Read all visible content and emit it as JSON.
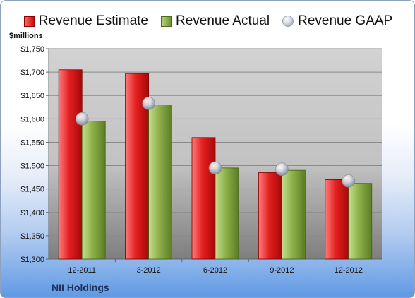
{
  "legend": {
    "estimate": "Revenue Estimate",
    "actual": "Revenue Actual",
    "gaap": "Revenue GAAP"
  },
  "units_label": "$millions",
  "company": "NII Holdings",
  "colors": {
    "estimate": "#d81f1f",
    "actual": "#8db04a",
    "gaap": "#c9ced8",
    "plot_bg": "#c9c9c9"
  },
  "chart_data": {
    "type": "bar",
    "categories": [
      "12-2011",
      "3-2012",
      "6-2012",
      "9-2012",
      "12-2012"
    ],
    "series": [
      {
        "name": "Revenue Estimate",
        "values": [
          1705,
          1697,
          1560,
          1485,
          1470
        ]
      },
      {
        "name": "Revenue Actual",
        "values": [
          1595,
          1630,
          1495,
          1490,
          1462
        ]
      },
      {
        "name": "Revenue GAAP",
        "type": "scatter",
        "values": [
          1600,
          1633,
          1495,
          1492,
          1467
        ]
      }
    ],
    "y_ticks": [
      "$1,300",
      "$1,350",
      "$1,400",
      "$1,450",
      "$1,500",
      "$1,550",
      "$1,600",
      "$1,650",
      "$1,700",
      "$1,750"
    ],
    "ylim": [
      1300,
      1750
    ],
    "ylabel": "$millions",
    "grid": true,
    "legend_position": "top"
  }
}
